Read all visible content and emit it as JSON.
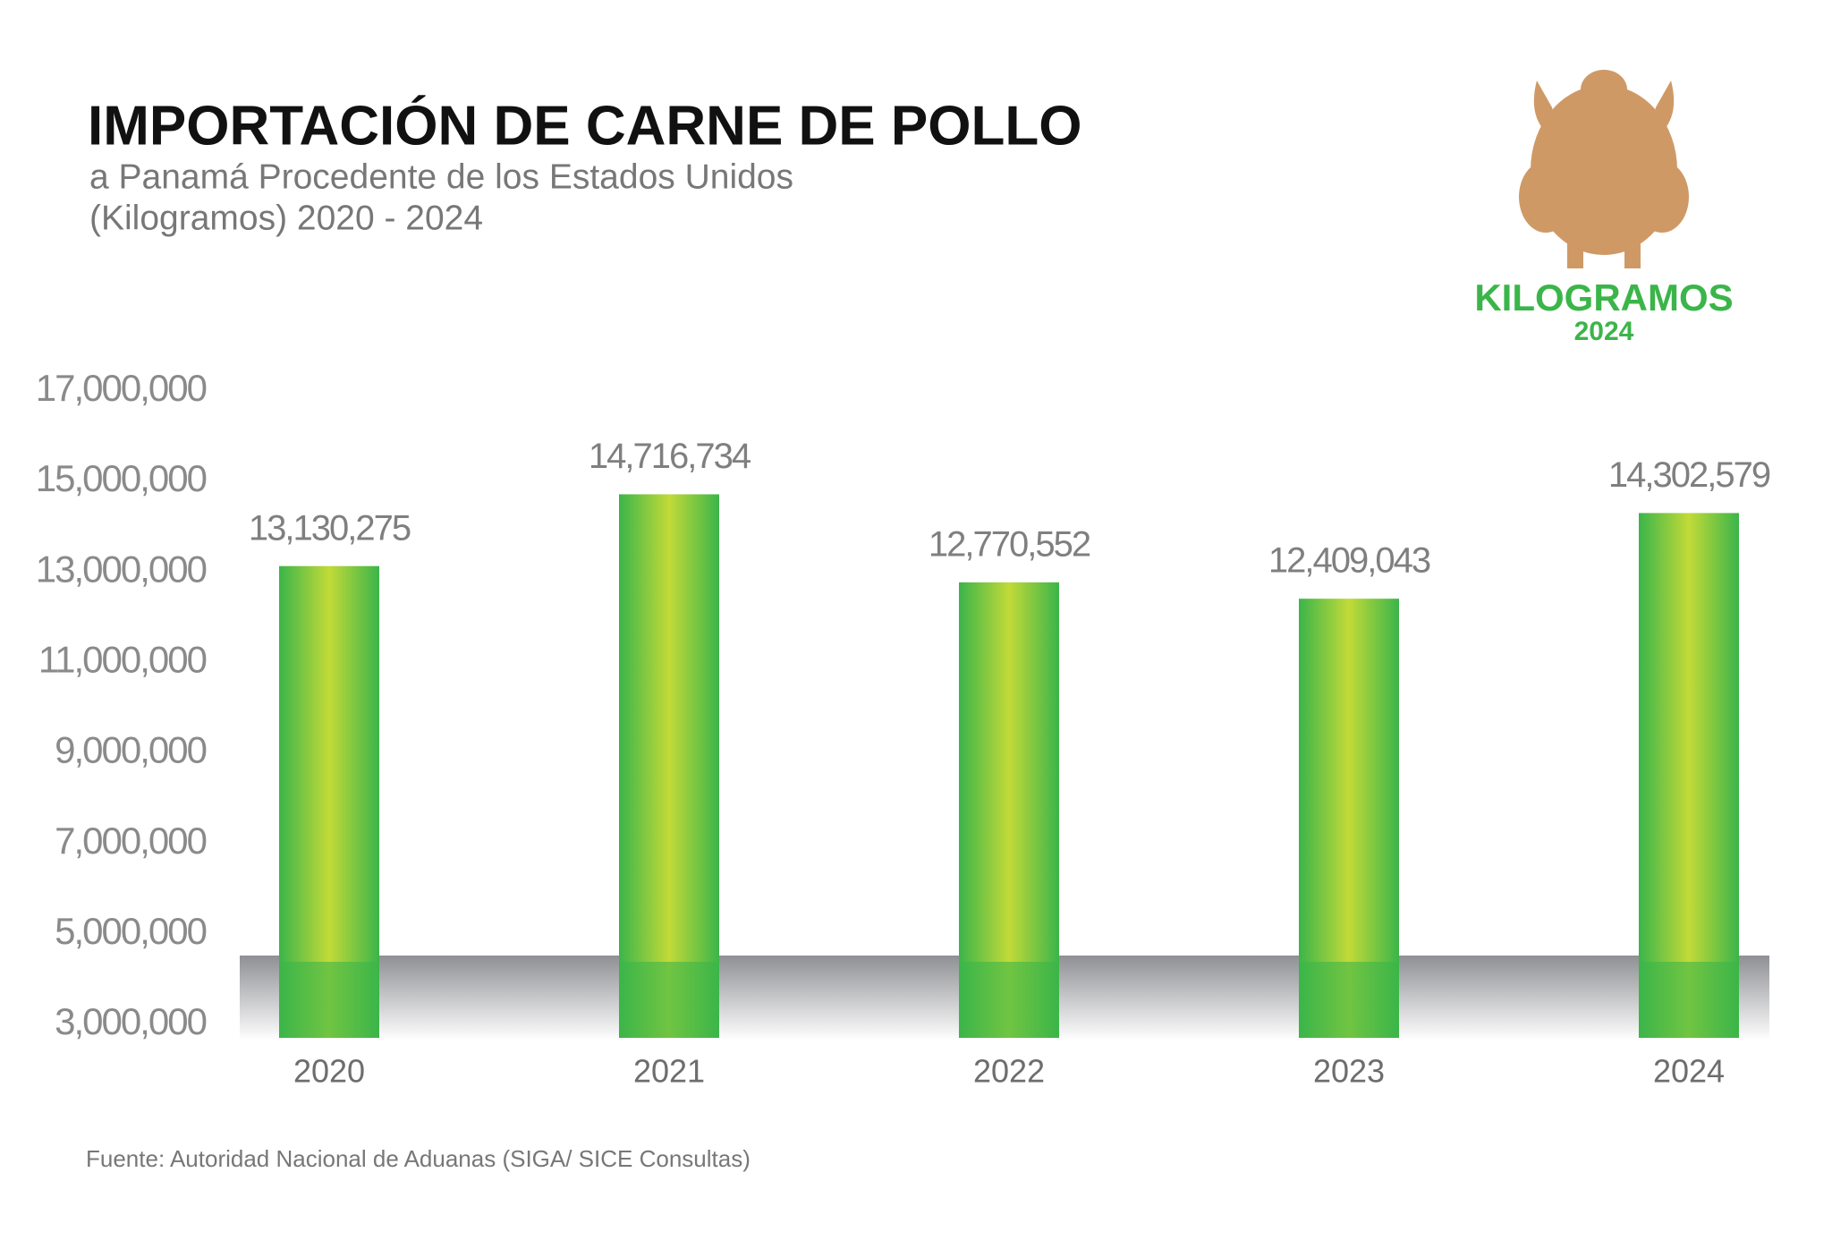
{
  "chart_data": {
    "type": "bar",
    "title": "IMPORTACIÓN DE CARNE DE POLLO",
    "subtitle": [
      "a Panamá Procedente de los Estados Unidos",
      "(Kilogramos) 2020 - 2024"
    ],
    "badge_title": "KILOGRAMOS",
    "badge_year": "2024",
    "categories": [
      "2020",
      "2021",
      "2022",
      "2023",
      "2024"
    ],
    "values": [
      13130275,
      14716734,
      12770552,
      12409043,
      14302579
    ],
    "value_labels": [
      "13,130,275",
      "14,716,734",
      "12,770,552",
      "12,409,043",
      "14,302,579"
    ],
    "color": "#3bb54a",
    "ylim": [
      3000000,
      17000000
    ],
    "yticks": [
      {
        "value": 3000000,
        "label": "3,000,000"
      },
      {
        "value": 5000000,
        "label": "5,000,000"
      },
      {
        "value": 7000000,
        "label": "7,000,000"
      },
      {
        "value": 9000000,
        "label": "9,000,000"
      },
      {
        "value": 11000000,
        "label": "11,000,000"
      },
      {
        "value": 13000000,
        "label": "13,000,000"
      },
      {
        "value": 15000000,
        "label": "15,000,000"
      },
      {
        "value": 17000000,
        "label": "17,000,000"
      }
    ],
    "grid": false,
    "source": "Fuente: Autoridad Nacional de Aduanas  (SIGA/ SICE Consultas)"
  }
}
